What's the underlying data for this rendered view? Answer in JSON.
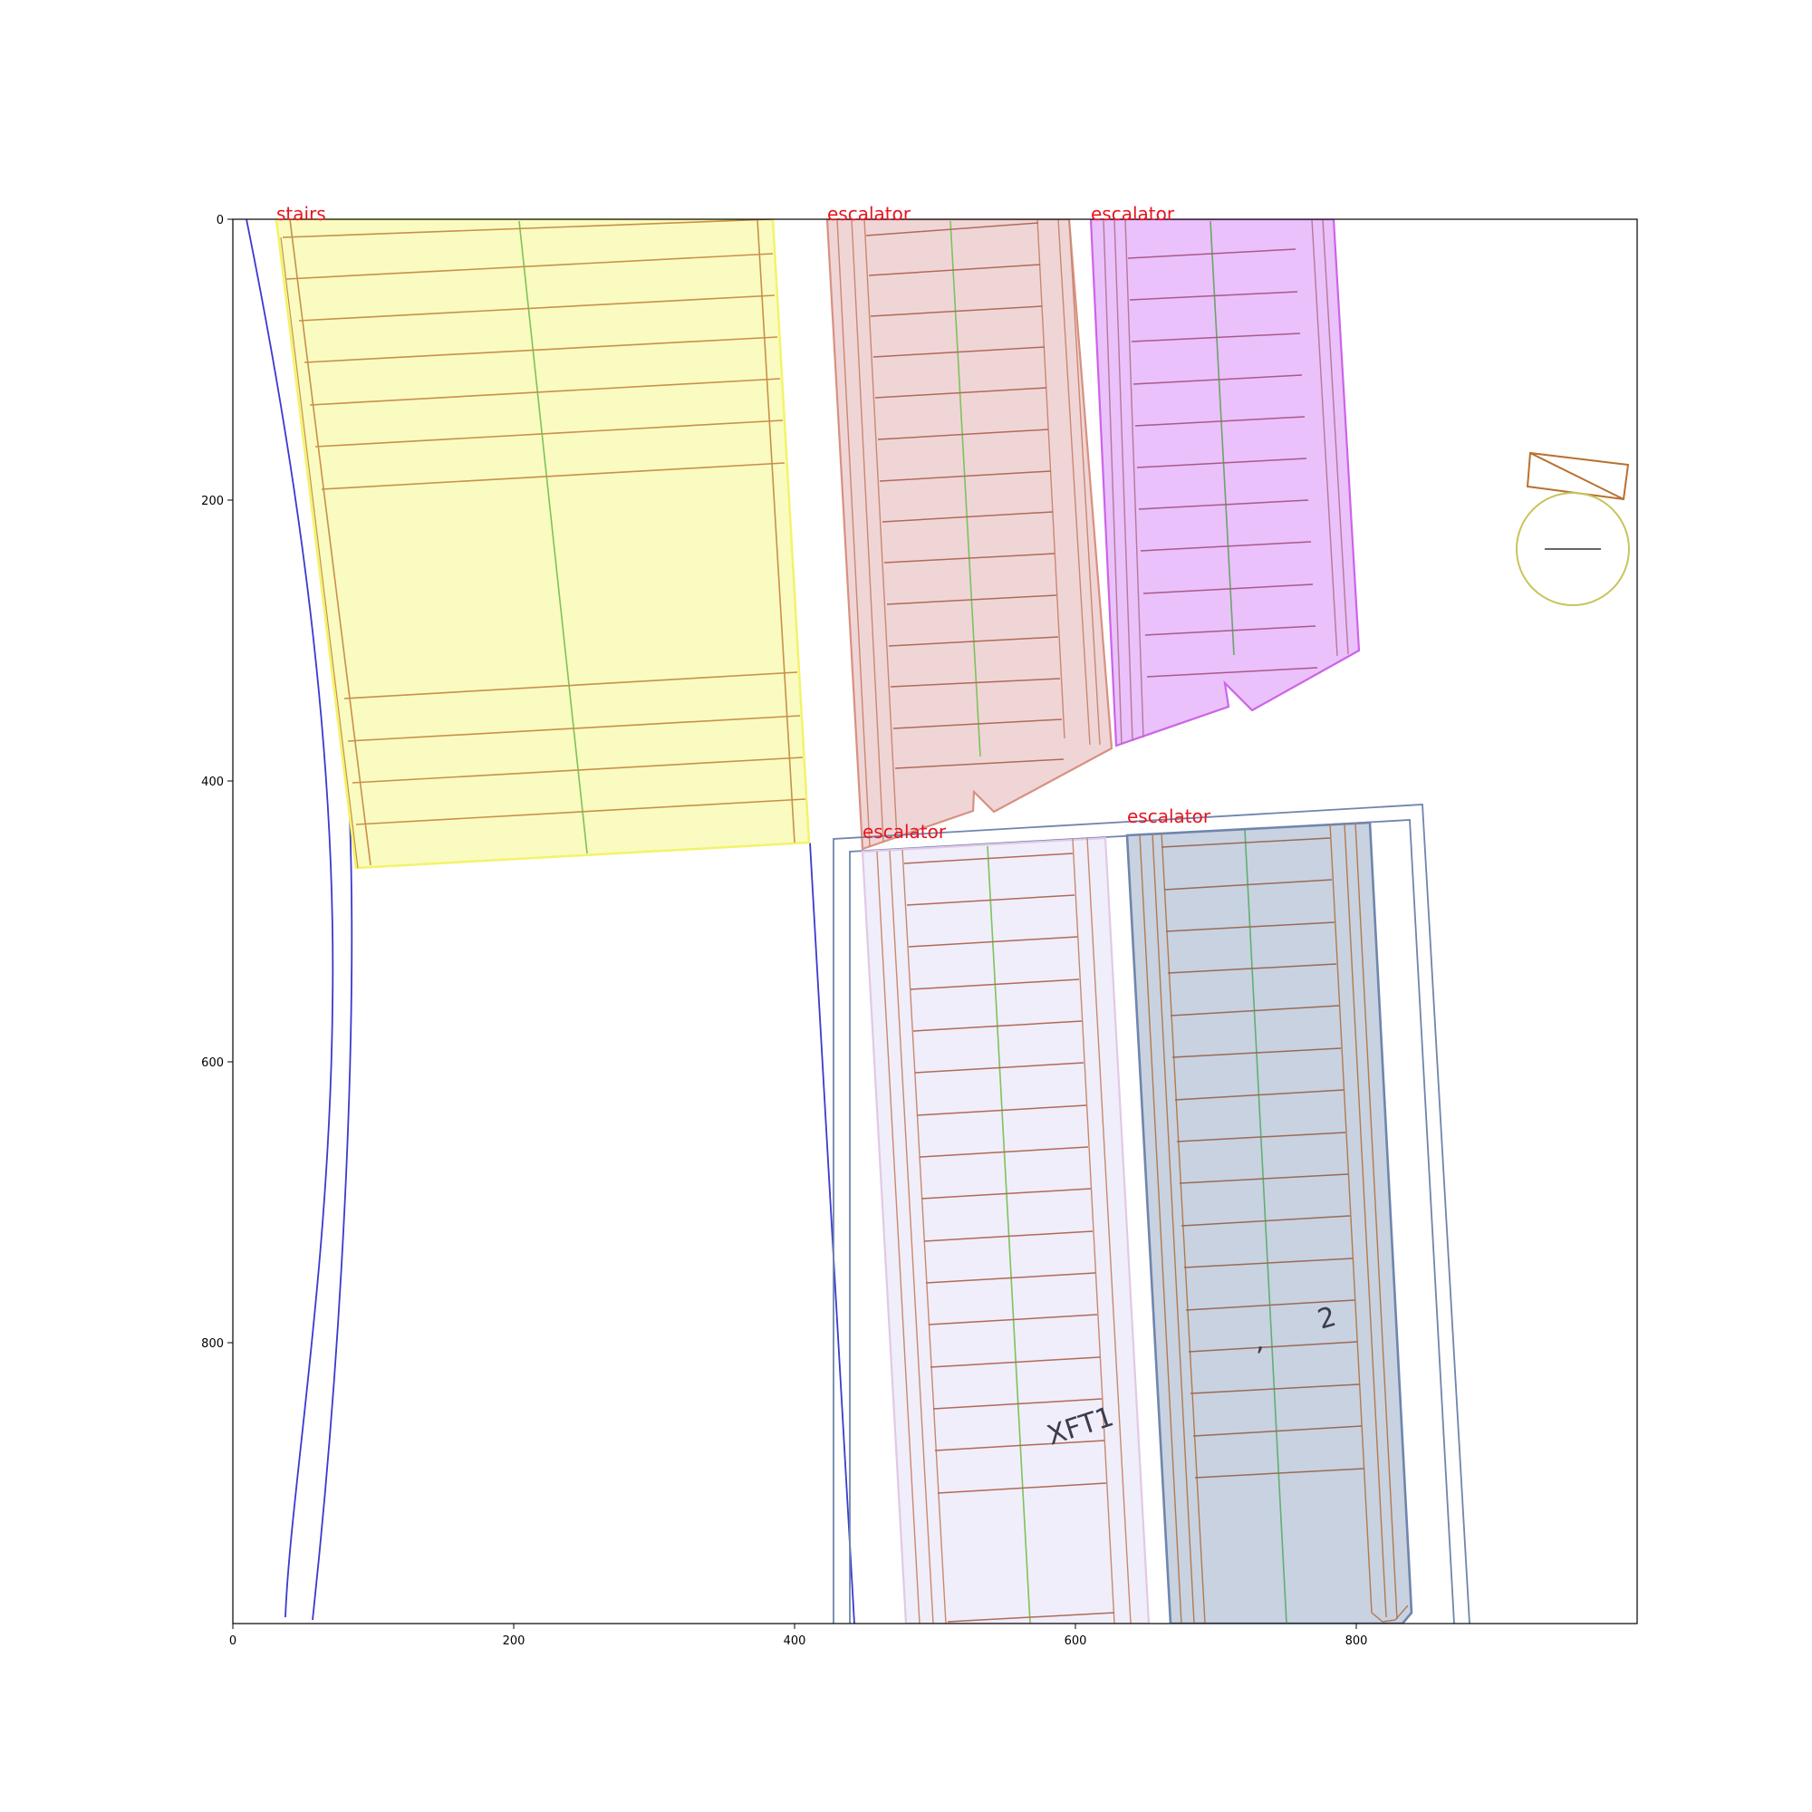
{
  "colors": {
    "label": "#e8141e",
    "axes": "#000000",
    "wall": "#3a3ad0",
    "frame": "#6f85ad",
    "rail": "#b8804a",
    "center": "#7cc35a"
  },
  "axes": {
    "xlim": [
      0,
      1000
    ],
    "ylim": [
      1000,
      0
    ],
    "x_ticks": [
      "0",
      "200",
      "400",
      "600",
      "800"
    ],
    "y_ticks": [
      "0",
      "200",
      "400",
      "600",
      "800"
    ]
  },
  "regions": [
    {
      "label": "stairs",
      "fill": "#fafbc0",
      "edge": "#f3f36a"
    },
    {
      "label": "escalator",
      "fill": "#f0d5d7",
      "edge": "#d89080"
    },
    {
      "label": "escalator",
      "fill": "#eac1fa",
      "edge": "#cd63e8"
    },
    {
      "label": "escalator",
      "fill": "#f0eefa",
      "edge": "#e2c8e6"
    },
    {
      "label": "escalator",
      "fill": "#c9d2e0",
      "edge": "#6f85ad"
    }
  ],
  "annotations": [
    "XFT1",
    "2",
    ","
  ],
  "icons": [
    "north-arrow-icon",
    "compass-circle-icon"
  ]
}
